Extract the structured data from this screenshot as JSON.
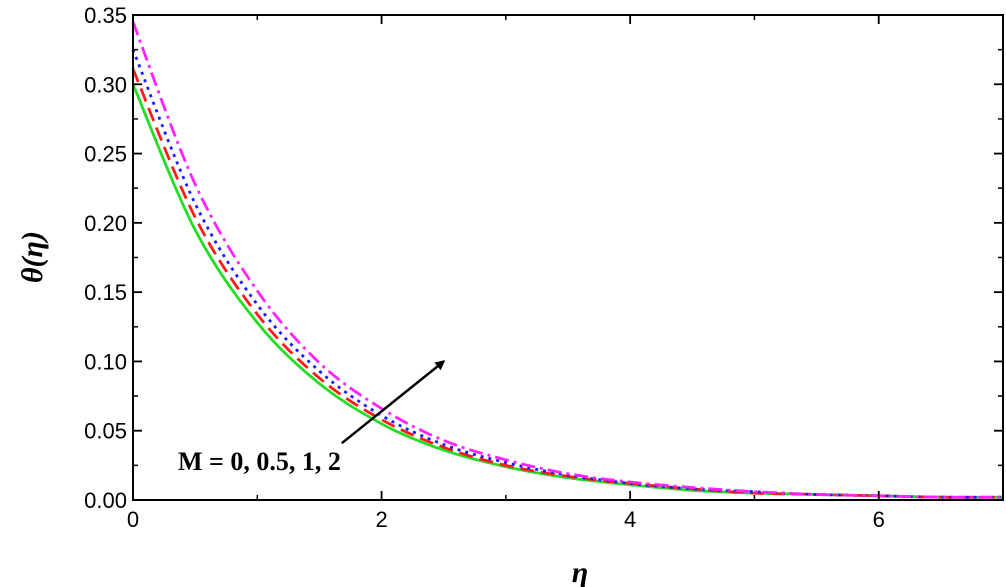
{
  "chart_data": {
    "type": "line",
    "title": "",
    "xlabel": "η",
    "ylabel": "θ(η)",
    "xlim": [
      0,
      7
    ],
    "ylim": [
      0,
      0.35
    ],
    "xticks": [
      0,
      2,
      4,
      6
    ],
    "xtick_labels": [
      "0",
      "2",
      "4",
      "6"
    ],
    "yticks": [
      0,
      0.05,
      0.1,
      0.15,
      0.2,
      0.25,
      0.3,
      0.35
    ],
    "ytick_labels": [
      "0.00",
      "0.05",
      "0.10",
      "0.15",
      "0.20",
      "0.25",
      "0.30",
      "0.35"
    ],
    "grid": false,
    "legend": "none",
    "x": [
      0,
      0.5,
      1,
      1.5,
      2,
      2.5,
      3,
      3.5,
      4,
      4.5,
      5,
      5.5,
      6,
      6.5,
      7
    ],
    "series": [
      {
        "style": "solid",
        "color": "#22dd22",
        "values": [
          0.3,
          0.195,
          0.128,
          0.084,
          0.055,
          0.036,
          0.024,
          0.016,
          0.011,
          0.007,
          0.005,
          0.004,
          0.003,
          0.002,
          0.002
        ]
      },
      {
        "style": "dashed",
        "color": "#ff1a1a",
        "values": [
          0.311,
          0.204,
          0.134,
          0.088,
          0.058,
          0.038,
          0.025,
          0.017,
          0.012,
          0.008,
          0.005,
          0.004,
          0.003,
          0.002,
          0.002
        ]
      },
      {
        "style": "dotted",
        "color": "#1a1aff",
        "values": [
          0.325,
          0.214,
          0.141,
          0.093,
          0.061,
          0.04,
          0.027,
          0.018,
          0.012,
          0.008,
          0.006,
          0.004,
          0.003,
          0.002,
          0.002
        ]
      },
      {
        "style": "dashdot",
        "color": "#ff22ff",
        "values": [
          0.345,
          0.228,
          0.151,
          0.099,
          0.066,
          0.043,
          0.029,
          0.019,
          0.013,
          0.009,
          0.006,
          0.004,
          0.003,
          0.002,
          0.002
        ]
      }
    ],
    "annotation": {
      "text": "M = 0, 0.5, 1, 2",
      "arrow_from": [
        1.68,
        0.041
      ],
      "arrow_to": [
        2.5,
        0.1
      ]
    }
  }
}
